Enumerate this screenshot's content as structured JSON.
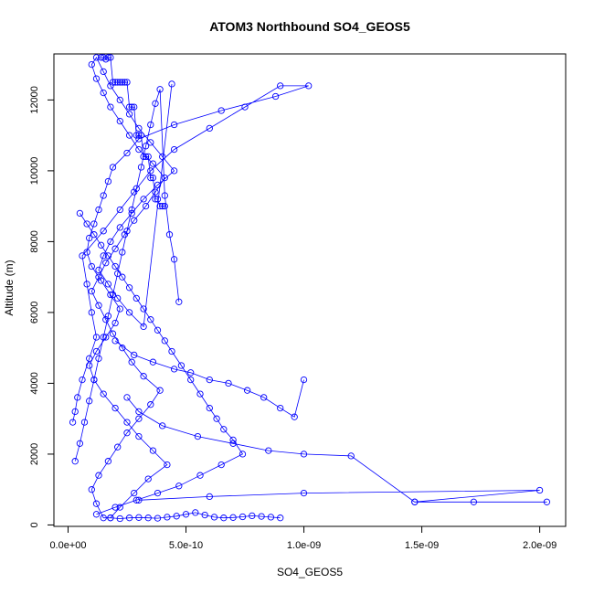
{
  "chart_data": {
    "type": "scatter",
    "title": "ATOM3 Northbound SO4_GEOS5",
    "xlabel": "SO4_GEOS5",
    "ylabel": "Altitude (m)",
    "xlim": [
      -6e-11,
      2.11e-09
    ],
    "ylim": [
      -40,
      13300
    ],
    "x_ticks": [
      0,
      5e-10,
      1e-09,
      1.5e-09,
      2e-09
    ],
    "x_tick_labels": [
      "0.0e+00",
      "5.0e-10",
      "1.0e-09",
      "1.5e-09",
      "2.0e-09"
    ],
    "y_ticks": [
      0,
      2000,
      4000,
      6000,
      8000,
      10000,
      12000
    ],
    "y_tick_labels": [
      "0",
      "2000",
      "4000",
      "6000",
      "8000",
      "10000",
      "12000"
    ],
    "y_tick_orientation": "vertical",
    "marker": "open-circle",
    "connect_points": true,
    "grid": false,
    "legend": "none",
    "color": "#0000ff",
    "series": [
      {
        "x": [
          2e-11,
          3e-11,
          4e-11,
          6e-11,
          9e-11,
          1.2e-10,
          1e-10,
          8e-11,
          6e-11,
          1.5e-10,
          2.2e-10,
          2.8e-10,
          3.5e-10,
          4.5e-10,
          6e-10,
          7.5e-10,
          9e-10,
          1.02e-09,
          8.8e-10,
          6.5e-10,
          4.5e-10,
          3e-10,
          2.5e-10,
          1.9e-10,
          1.7e-10,
          1.5e-10,
          1.3e-10,
          1.1e-10,
          9e-11,
          8e-11,
          1e-10,
          1.4e-10,
          1.8e-10,
          2.2e-10,
          2e-10,
          1.6e-10,
          1.2e-10,
          9e-11,
          1.1e-10,
          1.5e-10,
          2e-10,
          2.5e-10,
          3e-10,
          3.6e-10,
          4.2e-10,
          3.4e-10,
          2.8e-10,
          2.2e-10,
          1.8e-10,
          1.5e-10,
          1.2e-10,
          1e-10,
          1.3e-10,
          1.7e-10,
          2.1e-10,
          2.5e-10,
          3e-10,
          3.5e-10,
          3.9e-10,
          3.2e-10,
          2.7e-10,
          2.3e-10,
          1.9e-10,
          1.6e-10,
          1.3e-10,
          1e-10,
          1.3e-10,
          1.6e-10,
          2e-10,
          2.4e-10,
          2.8e-10,
          3.3e-10,
          3.7e-10,
          4.1e-10,
          3.6e-10,
          3e-10,
          2.6e-10,
          2.2e-10,
          1.8e-10,
          1.5e-10,
          1.2e-10,
          1e-10,
          1.2e-10,
          1.5e-10,
          1.8e-10,
          2.2e-10,
          2.6e-10,
          3e-10,
          3.5e-10,
          4e-10,
          4.5e-10,
          3.8e-10,
          3.2e-10,
          2.7e-10,
          2.2e-10,
          1.8e-10,
          1.5e-10,
          1.3e-10,
          1.7e-10,
          2.1e-10,
          2.6e-10,
          3.2e-10,
          4.4e-10
        ],
        "y": [
          2900,
          3200,
          3600,
          4100,
          4700,
          5300,
          6000,
          6800,
          7600,
          8300,
          8900,
          9400,
          10000,
          10600,
          11200,
          11800,
          12400,
          12400,
          12100,
          11700,
          11300,
          10900,
          10500,
          10100,
          9700,
          9300,
          8900,
          8500,
          8100,
          7700,
          7300,
          6900,
          6500,
          6100,
          5700,
          5300,
          4900,
          4500,
          4100,
          3700,
          3300,
          2900,
          2500,
          2100,
          1700,
          1300,
          900,
          500,
          200,
          200,
          600,
          1000,
          1400,
          1800,
          2200,
          2600,
          3000,
          3400,
          3800,
          4200,
          4600,
          5000,
          5400,
          5800,
          6200,
          6600,
          7000,
          7400,
          7800,
          8200,
          8600,
          9000,
          9400,
          9800,
          10200,
          10600,
          11000,
          11400,
          11800,
          12200,
          12600,
          13000,
          13200,
          12800,
          12400,
          12000,
          11600,
          11200,
          10800,
          10400,
          10000,
          9600,
          9200,
          8800,
          8400,
          8000,
          7600,
          7200,
          6800,
          6400,
          6000,
          5600,
          12450
        ]
      },
      {
        "x": [
          2e-10,
          2.8e-10,
          3.6e-10,
          4.5e-10,
          5.2e-10,
          6e-10,
          6.8e-10,
          7.6e-10,
          8.3e-10,
          9e-10,
          9.6e-10,
          1e-09
        ],
        "y": [
          5200,
          4800,
          4600,
          4400,
          4300,
          4100,
          4000,
          3800,
          3600,
          3300,
          3050,
          4100
        ]
      },
      {
        "x": [
          2.5e-10,
          3e-10,
          4e-10,
          5.5e-10,
          7e-10,
          8.5e-10,
          1e-09,
          1.2e-09,
          1.47e-09,
          1.72e-09,
          2.03e-09,
          1.47e-09,
          2e-09,
          1e-09,
          6e-10,
          3e-10
        ],
        "y": [
          3600,
          3200,
          2800,
          2500,
          2300,
          2100,
          2000,
          1950,
          650,
          650,
          650,
          650,
          980,
          900,
          800,
          700
        ]
      },
      {
        "x": [
          1.8e-10,
          2.2e-10,
          2.6e-10,
          3e-10,
          3.4e-10,
          3.8e-10,
          4.2e-10,
          4.6e-10,
          5e-10,
          5.4e-10,
          5.8e-10,
          6.2e-10,
          6.6e-10,
          7e-10,
          7.4e-10,
          7.8e-10,
          8.2e-10,
          8.6e-10,
          9e-10
        ],
        "y": [
          200,
          180,
          200,
          210,
          200,
          190,
          220,
          250,
          300,
          350,
          280,
          220,
          200,
          210,
          230,
          260,
          240,
          220,
          200
        ]
      },
      {
        "x": [
          5e-11,
          8e-11,
          1.1e-10,
          1.4e-10,
          1.7e-10,
          2e-10,
          2.3e-10,
          2.6e-10,
          2.9e-10,
          3.2e-10,
          3.5e-10,
          3.8e-10,
          4.1e-10,
          4.4e-10,
          4.8e-10,
          5.2e-10,
          5.6e-10,
          6e-10,
          6.3e-10,
          6.6e-10,
          7e-10,
          7.4e-10,
          6.5e-10,
          5.6e-10,
          4.7e-10,
          3.8e-10,
          2.9e-10,
          2e-10,
          1.2e-10
        ],
        "y": [
          8800,
          8500,
          8200,
          7900,
          7600,
          7300,
          7000,
          6700,
          6400,
          6100,
          5800,
          5500,
          5200,
          4900,
          4500,
          4100,
          3700,
          3300,
          3000,
          2700,
          2400,
          2000,
          1700,
          1400,
          1100,
          900,
          700,
          500,
          300
        ]
      },
      {
        "x": [
          1.4e-10,
          1.5e-10,
          1.6e-10,
          1.7e-10,
          1.8e-10,
          1.9e-10,
          2e-10,
          2.1e-10,
          2.2e-10,
          2.3e-10,
          2.4e-10,
          2.5e-10,
          2.6e-10,
          2.7e-10,
          2.8e-10,
          2.9e-10,
          3e-10,
          3.1e-10,
          3.2e-10,
          3.3e-10,
          3.4e-10,
          3.5e-10,
          3.6e-10,
          3.7e-10,
          3.8e-10,
          3.9e-10,
          4e-10,
          4.1e-10
        ],
        "y": [
          13200,
          13200,
          13150,
          13200,
          13200,
          12500,
          12500,
          12500,
          12500,
          12500,
          12500,
          12500,
          11800,
          11800,
          11800,
          11000,
          11000,
          11000,
          10400,
          10400,
          10400,
          9800,
          9800,
          9200,
          9200,
          9000,
          9000,
          9000
        ]
      },
      {
        "x": [
          3e-11,
          5e-11,
          7e-11,
          9e-11,
          1.1e-10,
          1.3e-10,
          1.5e-10,
          1.7e-10,
          1.9e-10,
          2.1e-10,
          2.3e-10,
          2.5e-10,
          2.7e-10,
          2.9e-10,
          3.1e-10,
          3.3e-10,
          3.5e-10,
          3.7e-10,
          3.9e-10,
          4.1e-10,
          4.3e-10,
          4.5e-10,
          4.7e-10
        ],
        "y": [
          1800,
          2300,
          2900,
          3500,
          4100,
          4700,
          5300,
          5900,
          6500,
          7100,
          7700,
          8300,
          8900,
          9500,
          10100,
          10700,
          11300,
          11900,
          12300,
          9300,
          8200,
          7500,
          6300
        ]
      }
    ]
  }
}
